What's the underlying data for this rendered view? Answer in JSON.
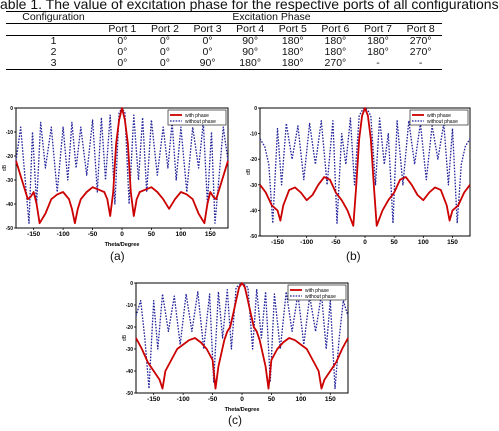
{
  "caption": "able 1. The value of excitation phase for the respective ports of all configurations",
  "table": {
    "config_header": "Configuration",
    "phase_header": "Excitation Phase",
    "ports": [
      "Port 1",
      "Port 2",
      "Port 3",
      "Port 4",
      "Port 5",
      "Port 6",
      "Port 7",
      "Port 8"
    ],
    "rows": [
      {
        "config": "1",
        "values": [
          "0°",
          "0°",
          "0°",
          "90°",
          "180°",
          "180°",
          "180°",
          "270°"
        ]
      },
      {
        "config": "2",
        "values": [
          "0°",
          "0°",
          "0°",
          "90°",
          "180°",
          "180°",
          "180°",
          "270°"
        ]
      },
      {
        "config": "3",
        "values": [
          "0°",
          "0°",
          "90°",
          "180°",
          "180°",
          "270°",
          "-",
          "-"
        ]
      }
    ]
  },
  "sublabels": [
    "(a)",
    "(b)",
    "(c)"
  ],
  "chart_data": [
    {
      "type": "line",
      "xlabel": "Theta/Degree",
      "ylabel": "dB",
      "xlim": [
        -180,
        180
      ],
      "ylim": [
        -50,
        0
      ],
      "xticks": [
        -150,
        -100,
        -50,
        0,
        50,
        100,
        150
      ],
      "yticks": [
        0,
        -10,
        -20,
        -30,
        -40,
        -50
      ],
      "legend_position": "top-right",
      "series": [
        {
          "name": "with phase",
          "color": "#cc0000",
          "x": [
            -180,
            -170,
            -160,
            -155,
            -150,
            -145,
            -140,
            -130,
            -120,
            -110,
            -100,
            -90,
            -85,
            -80,
            -75,
            -70,
            -60,
            -50,
            -40,
            -30,
            -25,
            -20,
            -15,
            -10,
            -5,
            0,
            5,
            10,
            15,
            20,
            25,
            30,
            40,
            50,
            60,
            70,
            80,
            90,
            100,
            110,
            120,
            130,
            140,
            145,
            150,
            155,
            160,
            170,
            180
          ],
          "y": [
            -22,
            -30,
            -38,
            -37,
            -35,
            -40,
            -48,
            -44,
            -38,
            -36,
            -35,
            -38,
            -42,
            -48,
            -42,
            -38,
            -35,
            -33,
            -34,
            -35,
            -38,
            -45,
            -35,
            -15,
            -5,
            0,
            -5,
            -15,
            -35,
            -45,
            -38,
            -35,
            -34,
            -33,
            -35,
            -38,
            -42,
            -38,
            -35,
            -36,
            -38,
            -44,
            -48,
            -40,
            -35,
            -37,
            -38,
            -30,
            -22
          ]
        },
        {
          "name": "without phase",
          "color": "#22229a",
          "x": [
            -180,
            -172,
            -165,
            -158,
            -152,
            -145,
            -138,
            -130,
            -120,
            -110,
            -100,
            -92,
            -85,
            -78,
            -70,
            -60,
            -50,
            -42,
            -35,
            -28,
            -20,
            -12,
            -5,
            0,
            5,
            12,
            20,
            28,
            35,
            42,
            50,
            60,
            70,
            78,
            85,
            92,
            100,
            110,
            120,
            130,
            138,
            145,
            152,
            158,
            165,
            172,
            180
          ],
          "y": [
            -22,
            -8,
            -28,
            -48,
            -10,
            -40,
            -6,
            -25,
            -8,
            -35,
            -8,
            -30,
            -6,
            -25,
            -8,
            -28,
            -5,
            -35,
            -4,
            -30,
            -3,
            -40,
            -2,
            0,
            -2,
            -40,
            -3,
            -30,
            -4,
            -35,
            -5,
            -28,
            -8,
            -25,
            -6,
            -30,
            -8,
            -35,
            -8,
            -25,
            -6,
            -40,
            -10,
            -48,
            -28,
            -8,
            -22
          ]
        }
      ]
    },
    {
      "type": "line",
      "xlabel": "",
      "ylabel": "dB",
      "xlim": [
        -180,
        180
      ],
      "ylim": [
        -50,
        0
      ],
      "xticks": [
        -150,
        -100,
        -50,
        0,
        50,
        100,
        150
      ],
      "yticks": [
        0,
        -10,
        -20,
        -30,
        -40,
        -50
      ],
      "legend_position": "top-right",
      "series": [
        {
          "name": "with phase",
          "color": "#cc0000",
          "x": [
            -180,
            -170,
            -160,
            -150,
            -145,
            -140,
            -130,
            -120,
            -110,
            -100,
            -90,
            -80,
            -70,
            -60,
            -50,
            -40,
            -30,
            -20,
            -15,
            -10,
            -5,
            0,
            5,
            10,
            15,
            20,
            30,
            40,
            50,
            60,
            70,
            80,
            90,
            100,
            110,
            120,
            130,
            140,
            145,
            150,
            160,
            170,
            180
          ],
          "y": [
            -30,
            -33,
            -38,
            -40,
            -44,
            -38,
            -32,
            -31,
            -33,
            -36,
            -34,
            -30,
            -27,
            -28,
            -33,
            -36,
            -40,
            -46,
            -30,
            -12,
            -3,
            0,
            -3,
            -12,
            -30,
            -46,
            -40,
            -36,
            -33,
            -28,
            -27,
            -30,
            -34,
            -36,
            -33,
            -31,
            -32,
            -38,
            -44,
            -40,
            -38,
            -33,
            -30
          ]
        },
        {
          "name": "without phase",
          "color": "#22229a",
          "x": [
            -180,
            -172,
            -165,
            -158,
            -150,
            -143,
            -135,
            -125,
            -115,
            -105,
            -95,
            -85,
            -75,
            -65,
            -55,
            -48,
            -40,
            -33,
            -25,
            -18,
            -10,
            -5,
            0,
            5,
            10,
            18,
            25,
            33,
            40,
            48,
            55,
            65,
            75,
            85,
            95,
            105,
            115,
            125,
            135,
            143,
            150,
            158,
            165,
            172,
            180
          ],
          "y": [
            -12,
            -15,
            -22,
            -45,
            -8,
            -30,
            -6,
            -20,
            -7,
            -28,
            -6,
            -22,
            -5,
            -30,
            -5,
            -45,
            -10,
            -22,
            -4,
            -30,
            -3,
            -1,
            0,
            -1,
            -3,
            -30,
            -4,
            -22,
            -10,
            -45,
            -5,
            -30,
            -5,
            -22,
            -6,
            -28,
            -7,
            -20,
            -6,
            -30,
            -8,
            -45,
            -22,
            -15,
            -12
          ]
        }
      ]
    },
    {
      "type": "line",
      "xlabel": "Theta/Degree",
      "ylabel": "dB",
      "xlim": [
        -180,
        180
      ],
      "ylim": [
        -50,
        0
      ],
      "xticks": [
        -150,
        -100,
        -50,
        0,
        50,
        100,
        150
      ],
      "yticks": [
        0,
        -10,
        -20,
        -30,
        -40,
        -50
      ],
      "legend_position": "top-right",
      "series": [
        {
          "name": "with phase",
          "color": "#cc0000",
          "x": [
            -180,
            -170,
            -160,
            -150,
            -140,
            -135,
            -130,
            -120,
            -110,
            -100,
            -90,
            -80,
            -70,
            -60,
            -50,
            -45,
            -40,
            -30,
            -25,
            -20,
            -15,
            -10,
            -5,
            0,
            5,
            10,
            15,
            20,
            25,
            30,
            40,
            45,
            50,
            60,
            70,
            80,
            90,
            100,
            110,
            120,
            130,
            135,
            140,
            150,
            160,
            170,
            180
          ],
          "y": [
            -25,
            -30,
            -36,
            -40,
            -44,
            -48,
            -40,
            -35,
            -30,
            -28,
            -26,
            -25,
            -27,
            -30,
            -35,
            -48,
            -38,
            -26,
            -22,
            -20,
            -14,
            -8,
            -2,
            0,
            -2,
            -8,
            -14,
            -20,
            -22,
            -26,
            -38,
            -48,
            -35,
            -30,
            -27,
            -25,
            -26,
            -28,
            -30,
            -35,
            -40,
            -48,
            -44,
            -40,
            -36,
            -30,
            -25
          ]
        },
        {
          "name": "without phase",
          "color": "#22229a",
          "x": [
            -180,
            -172,
            -165,
            -158,
            -150,
            -143,
            -135,
            -125,
            -115,
            -105,
            -95,
            -85,
            -75,
            -65,
            -55,
            -48,
            -40,
            -33,
            -25,
            -18,
            -10,
            -5,
            0,
            5,
            10,
            18,
            25,
            33,
            40,
            48,
            55,
            65,
            75,
            85,
            95,
            105,
            115,
            125,
            135,
            143,
            150,
            158,
            165,
            172,
            180
          ],
          "y": [
            -15,
            -8,
            -25,
            -48,
            -8,
            -30,
            -5,
            -22,
            -6,
            -28,
            -5,
            -22,
            -4,
            -30,
            -5,
            -45,
            -4,
            -25,
            -3,
            -30,
            -2,
            -1,
            0,
            -1,
            -2,
            -30,
            -3,
            -25,
            -4,
            -45,
            -5,
            -30,
            -4,
            -22,
            -5,
            -28,
            -6,
            -22,
            -5,
            -30,
            -8,
            -48,
            -25,
            -8,
            -15
          ]
        }
      ]
    }
  ]
}
